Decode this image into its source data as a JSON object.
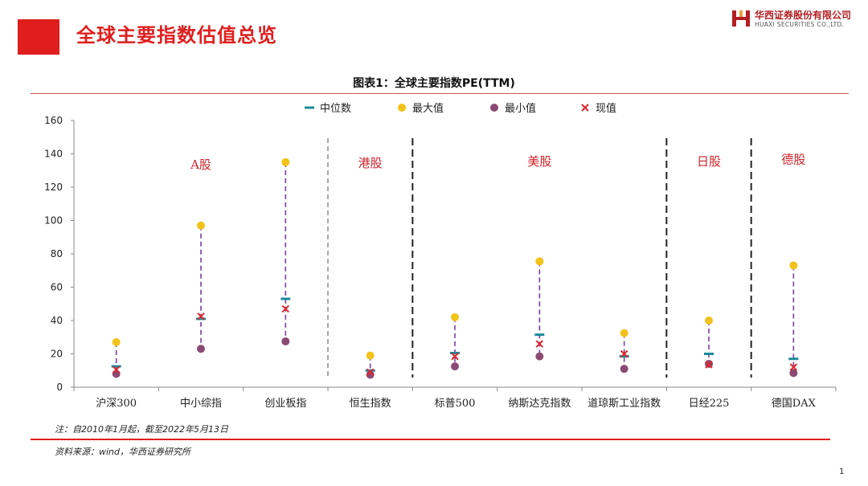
{
  "page": {
    "title": "全球主要指数估值总览",
    "page_number": "1"
  },
  "logo": {
    "cn": "华西证券股份有限公司",
    "en": "HUAXI SECURITIES CO.,LTD."
  },
  "note": "注：自2010年1月起，截至2022年5月13日",
  "source": "资料来源：wind，华西证券研究所",
  "colors": {
    "brand_red": "#e01e1e",
    "median": "#1a8a9a",
    "max": "#f2c21a",
    "min": "#8b4a73",
    "current": "#e0262b",
    "range_line": "#7b3fa0"
  },
  "chart_data": {
    "type": "scatter",
    "title": "图表1：全球主要指数PE(TTM)",
    "ylim": [
      0,
      160
    ],
    "yticks": [
      0,
      20,
      40,
      60,
      80,
      100,
      120,
      140,
      160
    ],
    "grid": false,
    "legend_position": "top",
    "categories": [
      "沪深300",
      "中小综指",
      "创业板指",
      "恒生指数",
      "标普500",
      "纳斯达克指数",
      "道琼斯工业指数",
      "日经225",
      "德国DAX"
    ],
    "series": [
      {
        "name": "中位数",
        "marker": "dash",
        "values": [
          12.5,
          41,
          53,
          10,
          20.5,
          31.5,
          18.5,
          20,
          17
        ]
      },
      {
        "name": "最大值",
        "marker": "circle",
        "values": [
          27,
          97,
          135,
          19,
          42,
          75.5,
          32.5,
          40,
          73
        ]
      },
      {
        "name": "最小值",
        "marker": "circle",
        "values": [
          8,
          23,
          27.5,
          7.5,
          12.5,
          18.5,
          11,
          14,
          8.5
        ]
      },
      {
        "name": "现值",
        "marker": "cross",
        "values": [
          10.5,
          42.5,
          47,
          9,
          18.5,
          26,
          20,
          13.5,
          12
        ]
      }
    ],
    "groups": [
      {
        "label": "A股",
        "y": 134
      },
      {
        "label": "港股",
        "y": 135
      },
      {
        "label": "美股",
        "y": 136
      },
      {
        "label": "日股",
        "y": 136
      },
      {
        "label": "德股",
        "y": 137
      }
    ]
  }
}
